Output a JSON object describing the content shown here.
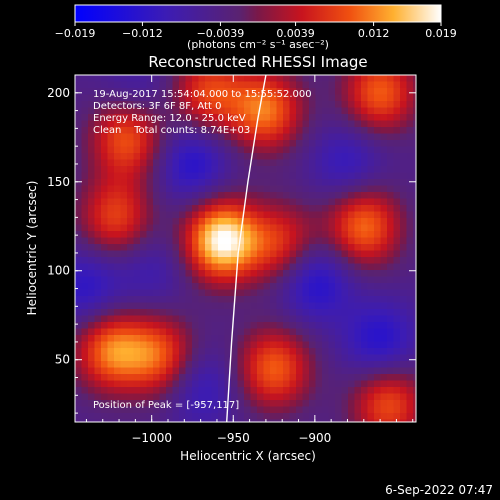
{
  "chart_data": {
    "type": "heatmap",
    "title": "Reconstructed RHESSI Image",
    "xlabel": "Heliocentric X (arcsec)",
    "ylabel": "Heliocentric Y (arcsec)",
    "xlim": [
      -1047,
      -838
    ],
    "ylim": [
      15,
      210
    ],
    "xticks": [
      -1000,
      -950,
      -900
    ],
    "xtick_labels": [
      "−1000",
      "−950",
      "−900"
    ],
    "yticks": [
      50,
      100,
      150,
      200
    ],
    "ytick_labels": [
      "50",
      "100",
      "150",
      "200"
    ],
    "colorbar": {
      "min": -0.019,
      "max": 0.019,
      "ticks": [
        -0.019,
        -0.012,
        -0.0039,
        0.0039,
        0.012,
        0.019
      ],
      "tick_labels": [
        "−0.019",
        "−0.012",
        "−0.0039",
        "0.0039",
        "0.012",
        "0.019"
      ],
      "unit_label": "(photons cm⁻² s⁻¹ asec⁻²)",
      "colormap": "RHESSI blue-purple-red-yellow-white"
    },
    "annotations": [
      "19-Aug-2017 15:54:04.000 to 15:55:52.000",
      "Detectors: 3F 6F 8F, Att 0",
      "Energy Range: 12.0 - 25.0 keV",
      "Clean    Total counts: 8.74E+03",
      "Position of Peak = [-957,117]"
    ],
    "peak": {
      "x": -957,
      "y": 117
    },
    "sources": [
      {
        "x": -957,
        "y": 117,
        "value": 0.019
      },
      {
        "x": -1015,
        "y": 175,
        "value": 0.01
      },
      {
        "x": -1022,
        "y": 130,
        "value": 0.008
      },
      {
        "x": -1025,
        "y": 55,
        "value": 0.011
      },
      {
        "x": -995,
        "y": 52,
        "value": 0.009
      },
      {
        "x": -925,
        "y": 45,
        "value": 0.01
      },
      {
        "x": -920,
        "y": 115,
        "value": 0.007
      },
      {
        "x": -930,
        "y": 190,
        "value": 0.011
      },
      {
        "x": -870,
        "y": 125,
        "value": 0.011
      },
      {
        "x": -860,
        "y": 200,
        "value": 0.01
      },
      {
        "x": -855,
        "y": 25,
        "value": 0.009
      },
      {
        "x": -965,
        "y": 200,
        "value": 0.008
      },
      {
        "x": -975,
        "y": 160,
        "value": -0.01
      },
      {
        "x": -900,
        "y": 95,
        "value": -0.011
      },
      {
        "x": -1040,
        "y": 90,
        "value": -0.009
      },
      {
        "x": -880,
        "y": 160,
        "value": -0.008
      },
      {
        "x": -970,
        "y": 35,
        "value": -0.008
      },
      {
        "x": -860,
        "y": 60,
        "value": -0.01
      },
      {
        "x": -1010,
        "y": 200,
        "value": -0.006
      },
      {
        "x": -1000,
        "y": 100,
        "value": -0.006
      }
    ],
    "limb_curve": [
      [
        -954,
        15
      ],
      [
        -951,
        60
      ],
      [
        -947,
        110
      ],
      [
        -941,
        150
      ],
      [
        -935,
        185
      ],
      [
        -930,
        210
      ]
    ],
    "grid": false
  },
  "footer": {
    "date": "6-Sep-2022 07:47"
  }
}
